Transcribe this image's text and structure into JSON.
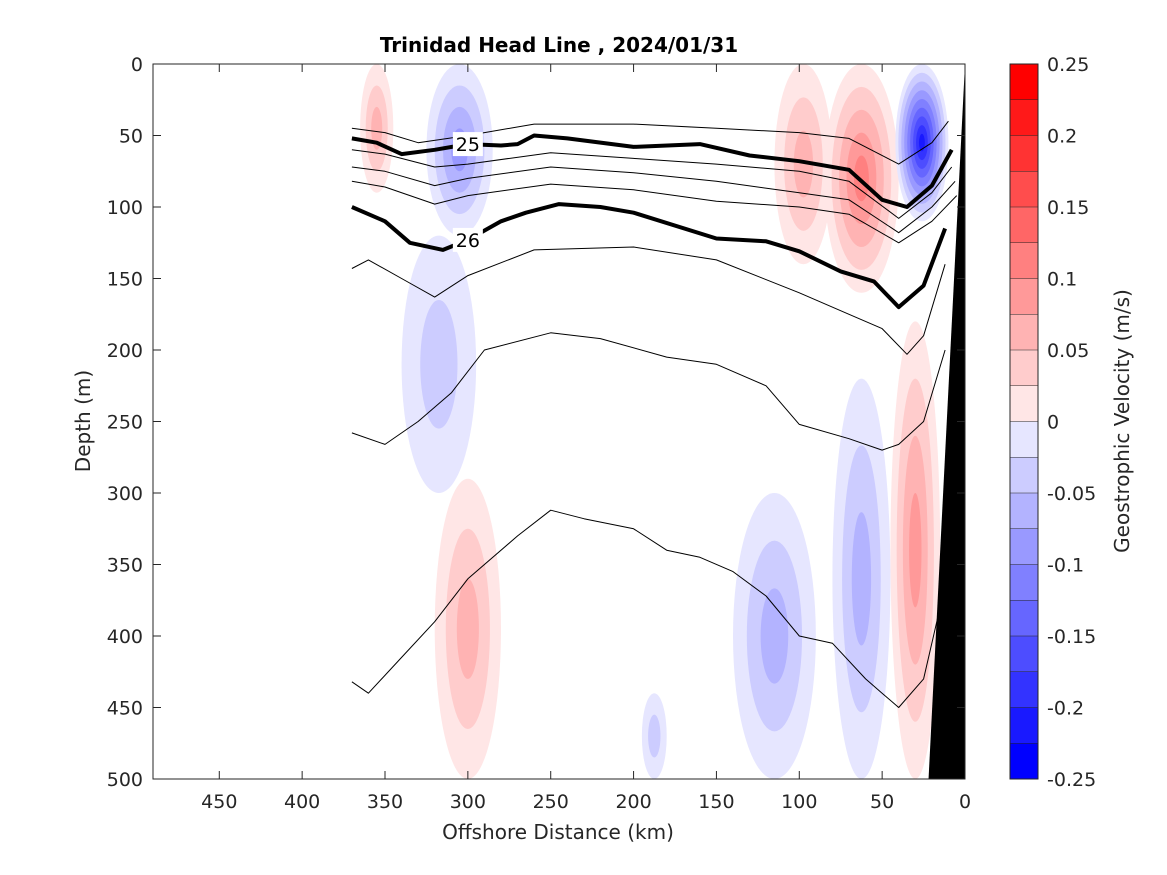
{
  "chart_data": {
    "type": "heatmap",
    "title": "Trinidad Head Line , 2024/01/31",
    "xlabel": "Offshore Distance (km)",
    "ylabel": "Depth (m)",
    "colorbar_label": "Geostrophic Velocity (m/s)",
    "xlim": [
      490,
      0
    ],
    "ylim": [
      0,
      500
    ],
    "x_reversed": true,
    "y_reversed": true,
    "xticks": [
      450,
      400,
      350,
      300,
      250,
      200,
      150,
      100,
      50,
      0
    ],
    "yticks": [
      0,
      50,
      100,
      150,
      200,
      250,
      300,
      350,
      400,
      450,
      500
    ],
    "colorbar": {
      "range": [
        -0.25,
        0.25
      ],
      "step": 0.025,
      "ticks": [
        "0.25",
        "0.2",
        "0.15",
        "0.1",
        "0.05",
        "0",
        "-0.05",
        "-0.1",
        "-0.15",
        "-0.2",
        "-0.25"
      ],
      "tick_values": [
        0.25,
        0.2,
        0.15,
        0.1,
        0.05,
        0,
        -0.05,
        -0.1,
        -0.15,
        -0.2,
        -0.25
      ],
      "colormap": "blue-white-red"
    },
    "velocity_features": [
      {
        "x": [
          365,
          345
        ],
        "depth": [
          0,
          90
        ],
        "value": 0.06
      },
      {
        "x": [
          325,
          285
        ],
        "depth": [
          0,
          120
        ],
        "value": -0.1
      },
      {
        "x": [
          340,
          295
        ],
        "depth": [
          120,
          300
        ],
        "value": -0.04
      },
      {
        "x": [
          320,
          280
        ],
        "depth": [
          290,
          500
        ],
        "value": 0.06
      },
      {
        "x": [
          195,
          180
        ],
        "depth": [
          440,
          500
        ],
        "value": -0.04
      },
      {
        "x": [
          140,
          90
        ],
        "depth": [
          300,
          500
        ],
        "value": -0.06
      },
      {
        "x": [
          115,
          80
        ],
        "depth": [
          0,
          140
        ],
        "value": 0.06
      },
      {
        "x": [
          85,
          40
        ],
        "depth": [
          0,
          160
        ],
        "value": 0.11
      },
      {
        "x": [
          80,
          45
        ],
        "depth": [
          220,
          500
        ],
        "value": -0.07
      },
      {
        "x": [
          42,
          10
        ],
        "depth": [
          0,
          110
        ],
        "value": -0.22
      },
      {
        "x": [
          45,
          15
        ],
        "depth": [
          180,
          500
        ],
        "value": 0.1
      }
    ],
    "contours": [
      {
        "level": "24.9",
        "x": [
          370,
          350,
          330,
          300,
          260,
          200,
          150,
          100,
          70,
          40,
          20,
          10
        ],
        "depth": [
          45,
          48,
          55,
          50,
          42,
          42,
          45,
          48,
          52,
          70,
          55,
          40
        ]
      },
      {
        "level": "25",
        "label": "25",
        "bold": true,
        "x": [
          370,
          355,
          340,
          320,
          300,
          280,
          270,
          260,
          240,
          200,
          160,
          130,
          100,
          70,
          50,
          35,
          20,
          8
        ],
        "depth": [
          52,
          55,
          63,
          60,
          56,
          57,
          56,
          50,
          52,
          58,
          56,
          64,
          68,
          74,
          95,
          100,
          85,
          60
        ]
      },
      {
        "level": "25.2",
        "x": [
          370,
          350,
          320,
          300,
          250,
          200,
          150,
          100,
          70,
          40,
          20,
          8
        ],
        "depth": [
          60,
          63,
          72,
          70,
          62,
          66,
          70,
          75,
          82,
          108,
          90,
          72
        ]
      },
      {
        "level": "25.4",
        "x": [
          370,
          350,
          320,
          300,
          250,
          200,
          150,
          100,
          70,
          40,
          20,
          6
        ],
        "depth": [
          72,
          75,
          85,
          80,
          72,
          76,
          82,
          90,
          95,
          118,
          100,
          82
        ]
      },
      {
        "level": "25.6",
        "x": [
          370,
          350,
          320,
          300,
          250,
          200,
          150,
          100,
          70,
          40,
          20,
          5
        ],
        "depth": [
          82,
          86,
          98,
          92,
          84,
          88,
          96,
          100,
          105,
          125,
          110,
          92
        ]
      },
      {
        "level": "26",
        "label": "26",
        "bold": true,
        "x": [
          370,
          350,
          335,
          315,
          300,
          280,
          265,
          245,
          220,
          200,
          150,
          120,
          100,
          75,
          55,
          40,
          25,
          12
        ],
        "depth": [
          100,
          110,
          125,
          130,
          123,
          110,
          104,
          98,
          100,
          104,
          122,
          124,
          131,
          145,
          152,
          170,
          155,
          115
        ]
      },
      {
        "level": "26.2",
        "x": [
          370,
          360,
          340,
          320,
          300,
          260,
          200,
          150,
          100,
          70,
          50,
          35,
          25,
          12
        ],
        "depth": [
          143,
          137,
          150,
          163,
          148,
          130,
          128,
          137,
          160,
          175,
          185,
          203,
          190,
          140
        ]
      },
      {
        "level": "26.4",
        "x": [
          370,
          350,
          330,
          310,
          290,
          250,
          220,
          180,
          150,
          120,
          100,
          70,
          50,
          40,
          25,
          12
        ],
        "depth": [
          258,
          266,
          250,
          230,
          200,
          188,
          192,
          205,
          210,
          225,
          252,
          262,
          270,
          266,
          250,
          200
        ]
      },
      {
        "level": "26.6",
        "x": [
          370,
          360,
          340,
          320,
          300,
          270,
          250,
          230,
          200,
          180,
          160,
          140,
          120,
          100,
          80,
          60,
          50,
          40,
          25,
          15
        ],
        "depth": [
          432,
          440,
          415,
          390,
          360,
          330,
          312,
          318,
          325,
          340,
          345,
          355,
          372,
          400,
          405,
          430,
          440,
          450,
          430,
          380
        ]
      }
    ],
    "bathymetry": {
      "x": [
        22,
        0
      ],
      "depth": [
        500,
        0
      ]
    }
  }
}
